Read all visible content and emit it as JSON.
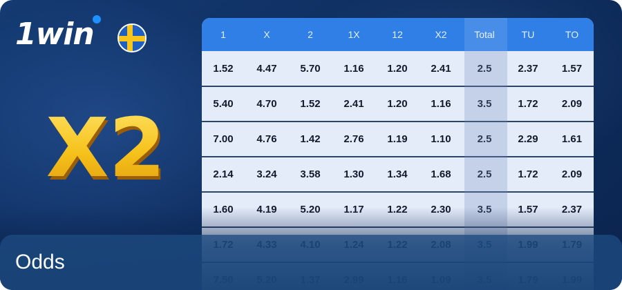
{
  "brand": {
    "logo_text": "1win",
    "flag": "sweden-flag-icon"
  },
  "hero": {
    "text": "X2"
  },
  "footer": {
    "title": "Odds"
  },
  "table": {
    "headers": [
      "1",
      "X",
      "2",
      "1X",
      "12",
      "X2",
      "Total",
      "TU",
      "TO"
    ],
    "rows": [
      [
        "1.52",
        "4.47",
        "5.70",
        "1.16",
        "1.20",
        "2.41",
        "2.5",
        "2.37",
        "1.57"
      ],
      [
        "5.40",
        "4.70",
        "1.52",
        "2.41",
        "1.20",
        "1.16",
        "3.5",
        "1.72",
        "2.09"
      ],
      [
        "7.00",
        "4.76",
        "1.42",
        "2.76",
        "1.19",
        "1.10",
        "2.5",
        "2.29",
        "1.61"
      ],
      [
        "2.14",
        "3.24",
        "3.58",
        "1.30",
        "1.34",
        "1.68",
        "2.5",
        "1.72",
        "2.09"
      ],
      [
        "1.60",
        "4.19",
        "5.20",
        "1.17",
        "1.22",
        "2.30",
        "3.5",
        "1.57",
        "2.37"
      ],
      [
        "1.72",
        "4.33",
        "4.10",
        "1.24",
        "1.22",
        "2.08",
        "3.5",
        "1.99",
        "1.79"
      ],
      [
        "7.50",
        "5.20",
        "1.37",
        "2.99",
        "1.16",
        "1.09",
        "3.5",
        "1.79",
        "1.99"
      ]
    ]
  },
  "colors": {
    "background": "#0f2f61",
    "header_blue": "#2f7fe6",
    "hero_yellow": "#f6c21b"
  }
}
